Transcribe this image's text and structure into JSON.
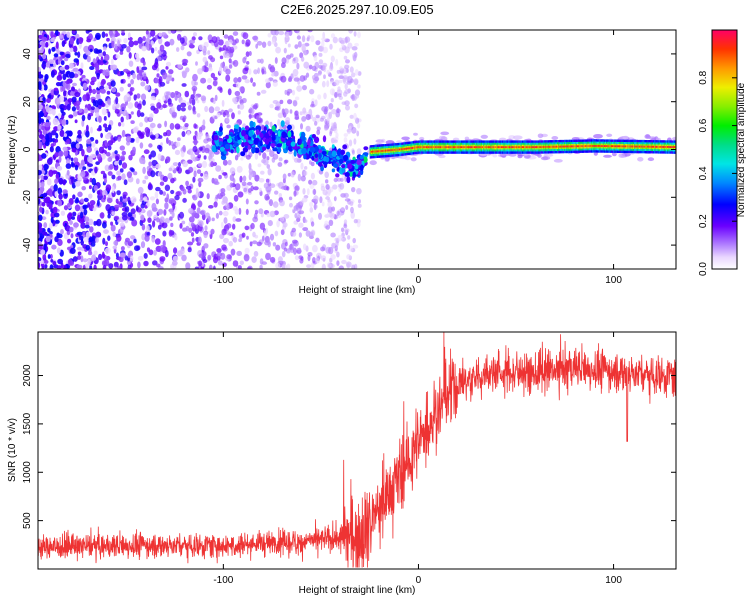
{
  "title": "C2E6.2025.297.10.09.E05",
  "chart_data": [
    {
      "type": "heatmap",
      "name": "spectrogram",
      "xlabel": "Height of straight line (km)",
      "ylabel": "Frequency (Hz)",
      "xlim": [
        -195,
        132
      ],
      "ylim": [
        -50,
        50
      ],
      "xticks": [
        -100,
        0,
        100
      ],
      "yticks": [
        -40,
        -20,
        0,
        20,
        40
      ],
      "xtick_labels": [
        "-100",
        "0",
        "100"
      ],
      "ytick_labels": [
        "-40",
        "-20",
        "0",
        "20",
        "40"
      ],
      "colorbar": {
        "label": "Normalized spectral amplitude",
        "range": [
          0,
          1
        ],
        "ticks": [
          0.0,
          0.2,
          0.4,
          0.6,
          0.8
        ],
        "tick_labels": [
          "0.0",
          "0.2",
          "0.4",
          "0.6",
          "0.8"
        ]
      },
      "ridge": {
        "points": [
          [
            -100,
            3
          ],
          [
            -80,
            5
          ],
          [
            -70,
            4
          ],
          [
            -60,
            2
          ],
          [
            -50,
            -2
          ],
          [
            -40,
            -5
          ],
          [
            -32,
            -8
          ],
          [
            -25,
            -1
          ],
          [
            -10,
            0
          ],
          [
            0,
            1
          ],
          [
            20,
            1
          ],
          [
            60,
            1
          ],
          [
            90,
            1.5
          ],
          [
            132,
            1
          ]
        ],
        "noise_region_x": [
          -195,
          -30
        ],
        "strong_band_x": [
          -25,
          132
        ],
        "strong_band_freq": 1
      },
      "grid": false
    },
    {
      "type": "line",
      "name": "snr",
      "xlabel": "Height of straight line (km)",
      "ylabel": "SNR (10 * v/v)",
      "xlim": [
        -195,
        132
      ],
      "ylim": [
        0,
        2450
      ],
      "xticks": [
        -100,
        0,
        100
      ],
      "yticks": [
        500,
        1000,
        1500,
        2000
      ],
      "xtick_labels": [
        "-100",
        "0",
        "100"
      ],
      "ytick_labels": [
        "500",
        "1000",
        "1500",
        "2000"
      ],
      "color": "#ee3333",
      "series": [
        {
          "name": "SNR",
          "x": [
            -195,
            -150,
            -100,
            -60,
            -40,
            -30,
            -20,
            -10,
            0,
            10,
            20,
            40,
            60,
            80,
            100,
            120,
            132
          ],
          "values": [
            230,
            240,
            250,
            280,
            320,
            350,
            600,
            950,
            1300,
            1650,
            1900,
            2050,
            2020,
            2080,
            2040,
            2010,
            2000
          ]
        }
      ],
      "annotations": [
        {
          "x": 107,
          "value": 1320,
          "note": "dip"
        }
      ],
      "grid": false
    }
  ]
}
